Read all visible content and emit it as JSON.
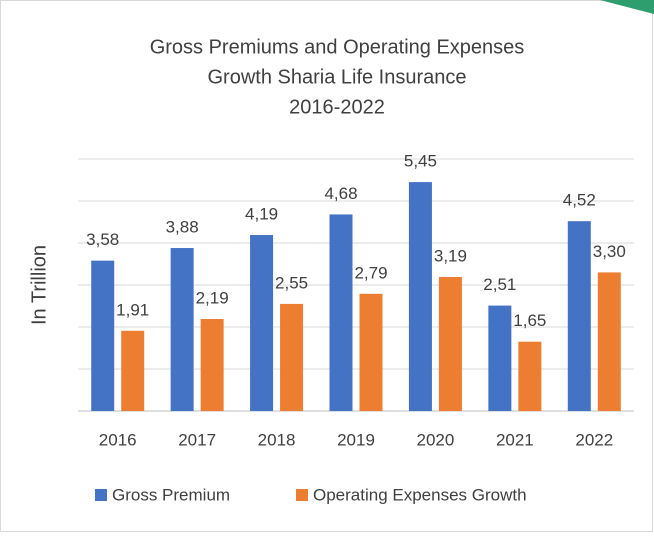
{
  "chart_data": {
    "type": "bar",
    "title": [
      "Gross Premiums and Operating Expenses",
      "Growth Sharia Life Insurance",
      "2016-2022"
    ],
    "y_label": "In Trillion",
    "categories": [
      "2016",
      "2017",
      "2018",
      "2019",
      "2020",
      "2021",
      "2022"
    ],
    "series": [
      {
        "name": "Gross Premium",
        "color": "#4472c4",
        "values": [
          3.58,
          3.88,
          4.19,
          4.68,
          5.45,
          2.51,
          4.52
        ],
        "value_labels": [
          "3,58",
          "3,88",
          "4,19",
          "4,68",
          "5,45",
          "2,51",
          "4,52"
        ]
      },
      {
        "name": "Operating Expenses Growth",
        "color": "#ed7d31",
        "values": [
          1.91,
          2.19,
          2.55,
          2.79,
          3.19,
          1.65,
          3.3
        ],
        "value_labels": [
          "1,91",
          "2,19",
          "2,55",
          "2,79",
          "3,19",
          "1,65",
          "3,30"
        ]
      }
    ],
    "ylim": [
      0,
      6
    ],
    "yticks": [
      0,
      1,
      2,
      3,
      4,
      5,
      6
    ],
    "grid": true,
    "legend": "bottom"
  }
}
